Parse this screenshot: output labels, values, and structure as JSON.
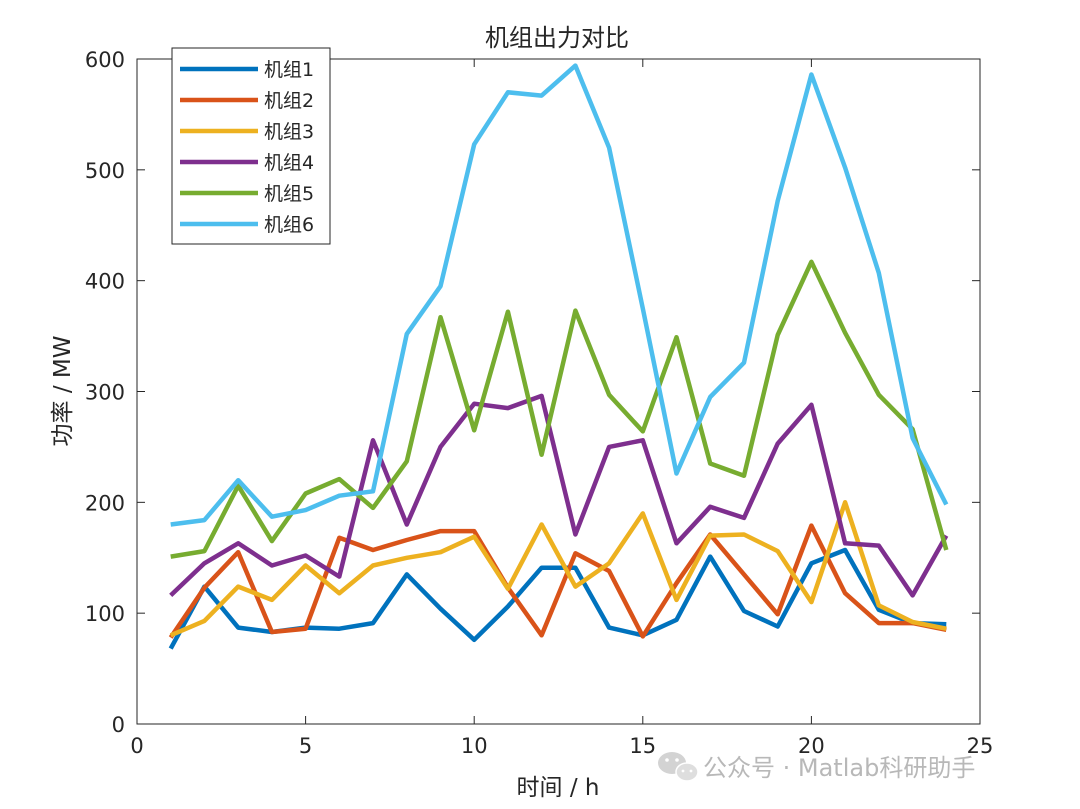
{
  "chart_data": {
    "type": "line",
    "title": "机组出力对比",
    "xlabel": "时间 / h",
    "ylabel": "功率 / MW",
    "xlim": [
      0,
      25
    ],
    "ylim": [
      0,
      600
    ],
    "xticks": [
      0,
      5,
      10,
      15,
      20,
      25
    ],
    "yticks": [
      0,
      100,
      200,
      300,
      400,
      500,
      600
    ],
    "grid": false,
    "legend_position": "top-left",
    "x": [
      1,
      2,
      3,
      4,
      5,
      6,
      7,
      8,
      9,
      10,
      11,
      12,
      13,
      14,
      15,
      16,
      17,
      18,
      19,
      20,
      21,
      22,
      23,
      24
    ],
    "series": [
      {
        "name": "机组1",
        "color": "#0072BD",
        "values": [
          68,
          124,
          87,
          83,
          87,
          86,
          91,
          135,
          104,
          76,
          106,
          141,
          141,
          87,
          80,
          94,
          151,
          102,
          88,
          145,
          157,
          103,
          91,
          90
        ]
      },
      {
        "name": "机组2",
        "color": "#D95319",
        "values": [
          78,
          123,
          155,
          83,
          86,
          168,
          157,
          166,
          174,
          174,
          123,
          80,
          154,
          138,
          79,
          127,
          171,
          135,
          99,
          179,
          118,
          91,
          91,
          85
        ]
      },
      {
        "name": "机组3",
        "color": "#EDB120",
        "values": [
          80,
          93,
          124,
          112,
          143,
          118,
          143,
          150,
          155,
          169,
          122,
          180,
          124,
          145,
          190,
          112,
          170,
          171,
          156,
          110,
          200,
          107,
          92,
          86
        ]
      },
      {
        "name": "机组4",
        "color": "#7E2F8E",
        "values": [
          116,
          145,
          163,
          143,
          152,
          133,
          256,
          180,
          250,
          289,
          285,
          296,
          171,
          250,
          256,
          163,
          196,
          186,
          253,
          288,
          163,
          161,
          116,
          170
        ]
      },
      {
        "name": "机组5",
        "color": "#77AC30",
        "values": [
          151,
          156,
          215,
          165,
          208,
          221,
          195,
          237,
          367,
          265,
          372,
          243,
          373,
          297,
          264,
          349,
          235,
          224,
          351,
          417,
          353,
          297,
          266,
          157
        ]
      },
      {
        "name": "机组6",
        "color": "#4DBEEE",
        "values": [
          180,
          184,
          220,
          187,
          193,
          206,
          210,
          352,
          395,
          523,
          570,
          567,
          594,
          520,
          375,
          226,
          295,
          326,
          472,
          586,
          502,
          407,
          258,
          198
        ]
      }
    ]
  },
  "watermark": {
    "icon": "wechat-icon",
    "text": "公众号 · Matlab科研助手"
  }
}
